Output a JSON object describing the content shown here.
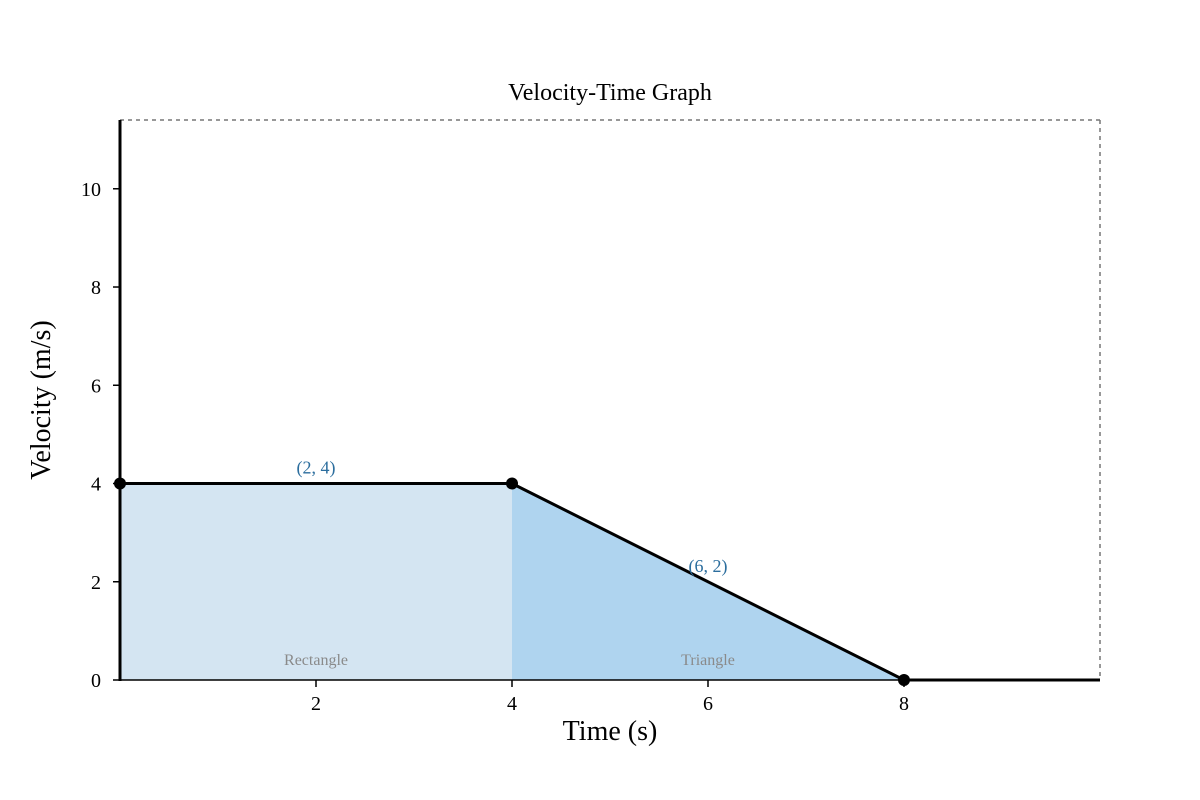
{
  "chart_data": {
    "type": "line",
    "title": "Velocity-Time Graph",
    "xlabel": "Time (s)",
    "ylabel": "Velocity (m/s)",
    "xlim": [
      0,
      10
    ],
    "ylim": [
      0,
      11.4
    ],
    "xticks": [
      2,
      4,
      6,
      8
    ],
    "yticks": [
      0,
      2,
      4,
      6,
      8,
      10
    ],
    "grid": false,
    "series": [
      {
        "x": [
          0,
          4,
          8,
          10
        ],
        "y": [
          4,
          4,
          0,
          0
        ],
        "markers_at": [
          0,
          1,
          2
        ]
      }
    ],
    "regions": [
      {
        "label": "Rectangle",
        "polygon": [
          [
            0,
            0
          ],
          [
            0,
            4
          ],
          [
            4,
            4
          ],
          [
            4,
            0
          ]
        ],
        "label_at": [
          2,
          0.2
        ]
      },
      {
        "label": "Triangle",
        "polygon": [
          [
            4,
            0
          ],
          [
            4,
            4
          ],
          [
            8,
            0
          ]
        ],
        "label_at": [
          6,
          0.2
        ]
      }
    ],
    "annotations": [
      {
        "text": "(2, 4)",
        "x": 2,
        "y": 4
      },
      {
        "text": "(6, 2)",
        "x": 6,
        "y": 2
      }
    ]
  },
  "colors": {
    "rectangle_fill": "#d4e5f2",
    "triangle_fill": "#afd4ef",
    "line": "#000000",
    "annotation": "#2c6e9e",
    "region_label": "#8a8a8a",
    "frame": "#777777"
  }
}
